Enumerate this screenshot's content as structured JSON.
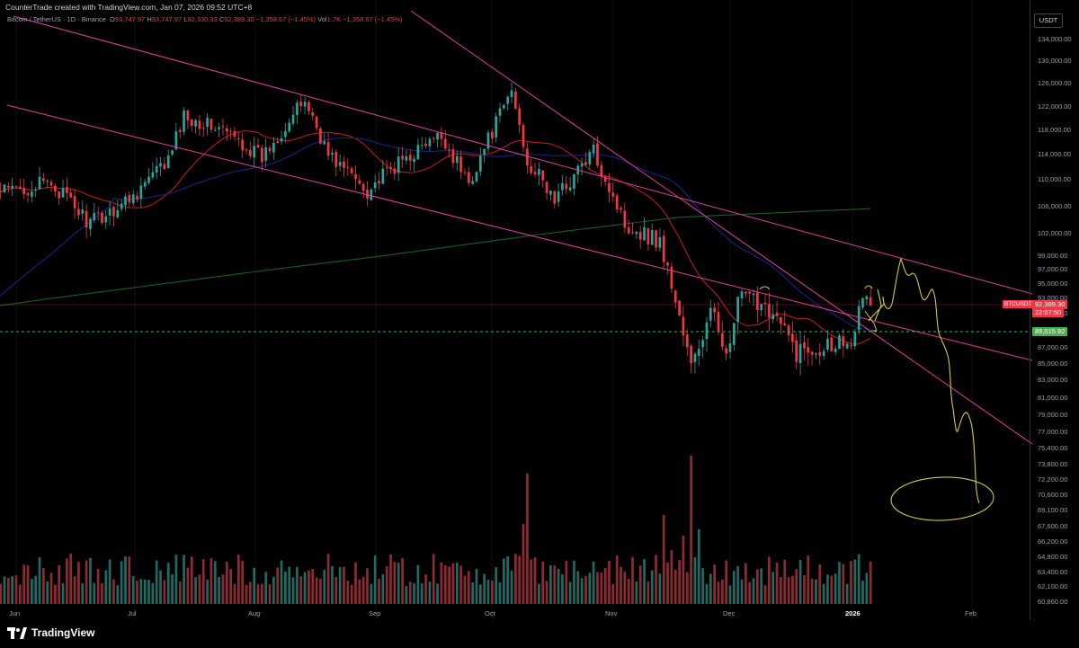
{
  "header": {
    "created_by": "CounterTrade created with TradingView.com, Jan 07, 2026 09:52 UTC+8",
    "symbol_title": "Bitcoin / TetherUS · 1D · Binance",
    "ohlc": {
      "o_label": "O",
      "o": "93,747.97",
      "h_label": "H",
      "h": "93,747.97",
      "l_label": "L",
      "l": "92,330.33",
      "c_label": "C",
      "c": "92,389.30",
      "change": "−1,358.67 (−1.45%)",
      "vol_label": "Vol",
      "vol": "1.7K",
      "vol_change": "−1,358.67 (−1.45%)"
    },
    "currency": "USDT"
  },
  "price_axis": {
    "labels": [
      "134,000.00",
      "130,000.00",
      "126,000.00",
      "122,000.00",
      "118,000.00",
      "114,000.00",
      "110,000.00",
      "106,000.00",
      "102,000.00",
      "99,000.00",
      "97,000.00",
      "95,000.00",
      "93,000.00",
      "91,000.00",
      "87,000.00",
      "85,000.00",
      "83,000.00",
      "81,000.00",
      "79,000.00",
      "77,000.00",
      "75,400.00",
      "73,800.00",
      "72,200.00",
      "70,600.00",
      "69,100.00",
      "67,600.00",
      "66,200.00",
      "64,800.00",
      "63,400.00",
      "62,100.00",
      "60,860.00"
    ],
    "current_price": "92,389.30",
    "countdown": "22:07:50",
    "symbol_tag": "BTCUSDT",
    "line_price": "89,015.92",
    "colors": {
      "up": "#26a69a",
      "down": "#f23645",
      "line": "#4caf50"
    }
  },
  "time_axis": {
    "labels": [
      "Jun",
      "Jul",
      "Aug",
      "Sep",
      "Oct",
      "Nov",
      "Dec",
      "2026",
      "Feb"
    ]
  },
  "chart_data": {
    "type": "candlestick",
    "symbol": "BTCUSDT",
    "interval": "1D",
    "exchange": "Binance",
    "x_range": [
      "2025-05-26",
      "2026-02-08"
    ],
    "y_range": [
      60860,
      135000
    ],
    "waypoints": [
      {
        "date": "2025-05-27",
        "close": 108000
      },
      {
        "date": "2025-06-10",
        "close": 109500
      },
      {
        "date": "2025-06-20",
        "close": 103500
      },
      {
        "date": "2025-06-30",
        "close": 107200
      },
      {
        "date": "2025-07-10",
        "close": 113000
      },
      {
        "date": "2025-07-14",
        "close": 120500
      },
      {
        "date": "2025-07-24",
        "close": 118000
      },
      {
        "date": "2025-08-03",
        "close": 113500
      },
      {
        "date": "2025-08-14",
        "close": 123200
      },
      {
        "date": "2025-08-20",
        "close": 114000
      },
      {
        "date": "2025-08-30",
        "close": 108500
      },
      {
        "date": "2025-09-10",
        "close": 114000
      },
      {
        "date": "2025-09-18",
        "close": 117000
      },
      {
        "date": "2025-09-25",
        "close": 109500
      },
      {
        "date": "2025-10-06",
        "close": 124800
      },
      {
        "date": "2025-10-10",
        "close": 113000
      },
      {
        "date": "2025-10-17",
        "close": 107000
      },
      {
        "date": "2025-10-27",
        "close": 114500
      },
      {
        "date": "2025-11-04",
        "close": 103500
      },
      {
        "date": "2025-11-13",
        "close": 101000
      },
      {
        "date": "2025-11-21",
        "close": 84500
      },
      {
        "date": "2025-11-26",
        "close": 91000
      },
      {
        "date": "2025-12-01",
        "close": 86500
      },
      {
        "date": "2025-12-03",
        "close": 93000
      },
      {
        "date": "2025-12-10",
        "close": 92500
      },
      {
        "date": "2025-12-18",
        "close": 86500
      },
      {
        "date": "2025-12-28",
        "close": 87800
      },
      {
        "date": "2026-01-01",
        "close": 88500
      },
      {
        "date": "2026-01-05",
        "close": 93700
      },
      {
        "date": "2026-01-06",
        "close": 92389
      }
    ],
    "moving_averages": [
      {
        "color": "#b71c1c",
        "length": 20
      },
      {
        "color": "#1a237e",
        "length": 50
      },
      {
        "color": "#1b5e20",
        "length": 200
      }
    ],
    "volume_peaks": [
      {
        "date": "2025-10-10",
        "relative": 0.88
      },
      {
        "date": "2025-11-21",
        "relative": 1.0
      },
      {
        "date": "2025-11-14",
        "relative": 0.6
      }
    ],
    "trend_lines_color": "#e040a0",
    "drawing_color": "#d4c84a"
  }
}
